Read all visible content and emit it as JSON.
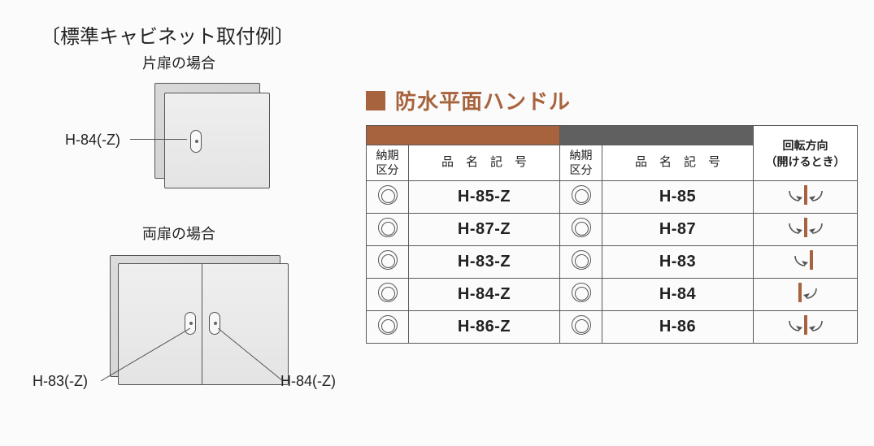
{
  "left": {
    "title": "〔標準キャビネット取付例〕",
    "single": {
      "subtitle": "片扉の場合",
      "label": "H-84(-Z)"
    },
    "double": {
      "subtitle": "両扉の場合",
      "label_left": "H-83(-Z)",
      "label_right": "H-84(-Z)"
    }
  },
  "section_title": "防水平面ハンドル",
  "table": {
    "header": {
      "delivery": "納期\n区分",
      "code": "品　名　記　号",
      "rotation": "回転方向\n（開けるとき）"
    },
    "columns": {
      "band_colors": [
        "#a7633d",
        "#606060",
        "#ffffff"
      ]
    },
    "rows": [
      {
        "mark1": "◎",
        "code1": "H-85-Z",
        "mark2": "◎",
        "code2": "H-85",
        "rotation": "both"
      },
      {
        "mark1": "◎",
        "code1": "H-87-Z",
        "mark2": "◎",
        "code2": "H-87",
        "rotation": "both"
      },
      {
        "mark1": "◎",
        "code1": "H-83-Z",
        "mark2": "◎",
        "code2": "H-83",
        "rotation": "left"
      },
      {
        "mark1": "◎",
        "code1": "H-84-Z",
        "mark2": "◎",
        "code2": "H-84",
        "rotation": "right"
      },
      {
        "mark1": "◎",
        "code1": "H-86-Z",
        "mark2": "◎",
        "code2": "H-86",
        "rotation": "both"
      }
    ]
  },
  "style": {
    "accent_color": "#a7633d",
    "grey_color": "#606060",
    "border_color": "#5a5a5a",
    "background": "#fbfbfb",
    "font_family": "Hiragino Kaku Gothic Pro, Meiryo, MS PGothic, sans-serif",
    "title_fontsize": 24,
    "section_title_fontsize": 26,
    "code_fontsize": 20
  }
}
